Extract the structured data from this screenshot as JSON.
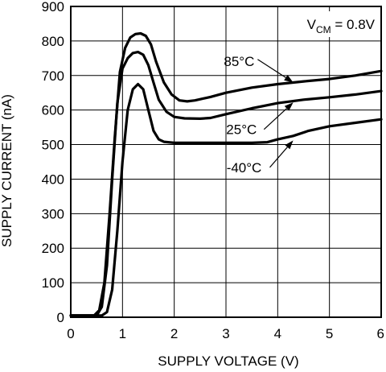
{
  "chart_data": {
    "type": "line",
    "xlabel": "SUPPLY VOLTAGE (V)",
    "ylabel": "SUPPLY CURRENT (nA)",
    "xlim": [
      0,
      6
    ],
    "ylim": [
      0,
      900
    ],
    "x_ticks": [
      0,
      1,
      2,
      3,
      4,
      5,
      6
    ],
    "y_ticks": [
      0,
      100,
      200,
      300,
      400,
      500,
      600,
      700,
      800,
      900
    ],
    "grid": true,
    "annotation": {
      "main": "V",
      "sub": "CM",
      "rest": " = 0.8V"
    },
    "series": [
      {
        "name": "85°C",
        "x": [
          0,
          0.45,
          0.55,
          0.65,
          0.75,
          0.85,
          0.95,
          1.05,
          1.15,
          1.25,
          1.35,
          1.45,
          1.55,
          1.65,
          1.8,
          1.95,
          2.1,
          2.25,
          2.4,
          2.7,
          3,
          3.5,
          4,
          4.5,
          5,
          5.5,
          6
        ],
        "y": [
          5,
          5,
          20,
          100,
          300,
          520,
          710,
          780,
          810,
          820,
          822,
          815,
          790,
          740,
          680,
          645,
          628,
          625,
          628,
          638,
          650,
          665,
          675,
          683,
          690,
          700,
          713
        ]
      },
      {
        "name": "25°C",
        "x": [
          0,
          0.5,
          0.6,
          0.7,
          0.8,
          0.9,
          1.0,
          1.1,
          1.2,
          1.3,
          1.4,
          1.5,
          1.6,
          1.7,
          1.85,
          2.0,
          2.2,
          2.5,
          2.7,
          3,
          3.5,
          4,
          4.5,
          5,
          5.5,
          6
        ],
        "y": [
          5,
          5,
          30,
          150,
          400,
          620,
          720,
          750,
          765,
          768,
          760,
          730,
          680,
          630,
          595,
          580,
          576,
          575,
          577,
          588,
          605,
          620,
          630,
          637,
          645,
          655
        ]
      },
      {
        "name": "-40°C",
        "x": [
          0,
          0.6,
          0.7,
          0.8,
          0.9,
          1.0,
          1.1,
          1.2,
          1.3,
          1.4,
          1.5,
          1.6,
          1.7,
          1.8,
          2.0,
          2.5,
          3,
          3.5,
          3.8,
          4,
          4.3,
          4.6,
          5,
          5.5,
          6
        ],
        "y": [
          5,
          5,
          15,
          80,
          250,
          450,
          600,
          660,
          675,
          660,
          600,
          540,
          515,
          508,
          505,
          505,
          505,
          505,
          507,
          515,
          525,
          540,
          553,
          563,
          573
        ]
      }
    ],
    "labels": [
      {
        "series": 0,
        "text": "85°C",
        "x": 3.55,
        "y": 728,
        "pointer": [
          4.3,
          680
        ],
        "anchor": "end"
      },
      {
        "series": 1,
        "text": "25°C",
        "x": 3.3,
        "y": 530,
        "pointer": [
          4.3,
          622
        ],
        "anchor": "middle"
      },
      {
        "series": 2,
        "text": "-40°C",
        "x": 3.35,
        "y": 420,
        "pointer": [
          4.3,
          512
        ],
        "anchor": "middle"
      }
    ]
  }
}
